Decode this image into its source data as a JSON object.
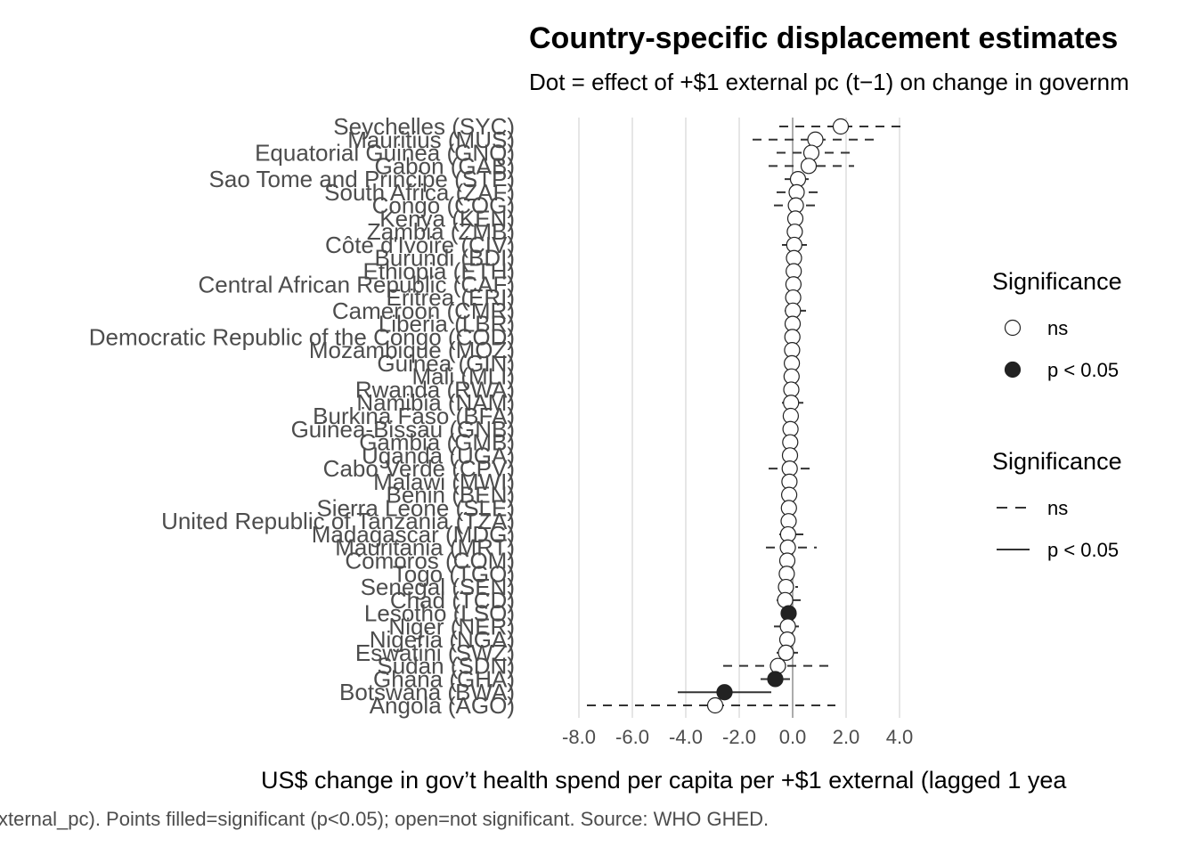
{
  "chart_data": {
    "type": "forest",
    "title": "Country-specific displacement estimates",
    "subtitle": "Dot = effect of +$1 external pc (t−1) on change in governm",
    "xlabel": "US$ change in gov’t health spend per capita per +$1 external (lagged 1 yea",
    "caption": "xternal_pc). Points filled=significant (p<0.05); open=not significant. Source: WHO GHED.",
    "xlim": [
      -8.0,
      4.0
    ],
    "x_ticks": [
      "-8.0",
      "-6.0",
      "-4.0",
      "-2.0",
      "0.0",
      "2.0",
      "4.0"
    ],
    "x_tick_values": [
      -8,
      -6,
      -4,
      -2,
      0,
      2,
      4
    ],
    "reference_line": 0,
    "countries": [
      {
        "label": "Seychelles (SYC)",
        "estimate": 1.8,
        "low": -0.5,
        "high": 4.1,
        "sig": false
      },
      {
        "label": "Mauritius (MUS)",
        "estimate": 0.85,
        "low": -1.5,
        "high": 3.2,
        "sig": false
      },
      {
        "label": "Equatorial Guinea (GNQ)",
        "estimate": 0.7,
        "low": -0.6,
        "high": 2.3,
        "sig": false
      },
      {
        "label": "Gabon (GAB)",
        "estimate": 0.6,
        "low": -0.9,
        "high": 2.3,
        "sig": false
      },
      {
        "label": "Sao Tome and Principe (STP)",
        "estimate": 0.2,
        "low": -0.3,
        "high": 0.6,
        "sig": false
      },
      {
        "label": "South Africa (ZAF)",
        "estimate": 0.15,
        "low": -0.6,
        "high": 1.0,
        "sig": false
      },
      {
        "label": "Congo (COG)",
        "estimate": 0.12,
        "low": -0.7,
        "high": 1.0,
        "sig": false
      },
      {
        "label": "Kenya (KEN)",
        "estimate": 0.1,
        "low": -0.2,
        "high": 0.4,
        "sig": false
      },
      {
        "label": "Zambia (ZMB)",
        "estimate": 0.08,
        "low": -0.2,
        "high": 0.4,
        "sig": false
      },
      {
        "label": "Côte d'Ivoire (CIV)",
        "estimate": 0.06,
        "low": -0.4,
        "high": 0.6,
        "sig": false
      },
      {
        "label": "Burundi (BDI)",
        "estimate": 0.05,
        "low": -0.2,
        "high": 0.3,
        "sig": false
      },
      {
        "label": "Ethiopia (ETH)",
        "estimate": 0.04,
        "low": -0.2,
        "high": 0.3,
        "sig": false
      },
      {
        "label": "Central African Republic (CAF)",
        "estimate": 0.03,
        "low": -0.2,
        "high": 0.3,
        "sig": false
      },
      {
        "label": "Eritrea (ERI)",
        "estimate": 0.02,
        "low": -0.2,
        "high": 0.3,
        "sig": false
      },
      {
        "label": "Cameroon (CMR)",
        "estimate": 0.01,
        "low": -0.3,
        "high": 0.5,
        "sig": false
      },
      {
        "label": "Liberia (LBR)",
        "estimate": 0.0,
        "low": -0.2,
        "high": 0.2,
        "sig": false
      },
      {
        "label": "Democratic Republic of the Congo (COD)",
        "estimate": -0.01,
        "low": -0.2,
        "high": 0.2,
        "sig": false
      },
      {
        "label": "Mozambique (MOZ)",
        "estimate": -0.02,
        "low": -0.2,
        "high": 0.2,
        "sig": false
      },
      {
        "label": "Guinea (GIN)",
        "estimate": -0.03,
        "low": -0.2,
        "high": 0.2,
        "sig": false
      },
      {
        "label": "Mali (MLI)",
        "estimate": -0.04,
        "low": -0.2,
        "high": 0.2,
        "sig": false
      },
      {
        "label": "Rwanda (RWA)",
        "estimate": -0.05,
        "low": -0.2,
        "high": 0.2,
        "sig": false
      },
      {
        "label": "Namibia (NAM)",
        "estimate": -0.06,
        "low": -0.4,
        "high": 0.4,
        "sig": false
      },
      {
        "label": "Burkina Faso (BFA)",
        "estimate": -0.07,
        "low": -0.2,
        "high": 0.2,
        "sig": false
      },
      {
        "label": "Guinea-Bissau (GNB)",
        "estimate": -0.08,
        "low": -0.2,
        "high": 0.2,
        "sig": false
      },
      {
        "label": "Gambia (GMB)",
        "estimate": -0.09,
        "low": -0.2,
        "high": 0.2,
        "sig": false
      },
      {
        "label": "Uganda (UGA)",
        "estimate": -0.1,
        "low": -0.2,
        "high": 0.2,
        "sig": false
      },
      {
        "label": "Cabo Verde (CPV)",
        "estimate": -0.11,
        "low": -0.9,
        "high": 0.9,
        "sig": false
      },
      {
        "label": "Malawi (MWI)",
        "estimate": -0.12,
        "low": -0.3,
        "high": 0.2,
        "sig": false
      },
      {
        "label": "Benin (BEN)",
        "estimate": -0.13,
        "low": -0.3,
        "high": 0.2,
        "sig": false
      },
      {
        "label": "Sierra Leone (SLE)",
        "estimate": -0.14,
        "low": -0.3,
        "high": 0.2,
        "sig": false
      },
      {
        "label": "United Republic of Tanzania (TZA)",
        "estimate": -0.15,
        "low": -0.3,
        "high": 0.2,
        "sig": false
      },
      {
        "label": "Madagascar (MDG)",
        "estimate": -0.17,
        "low": -0.5,
        "high": 0.4,
        "sig": false
      },
      {
        "label": "Mauritania (MRT)",
        "estimate": -0.18,
        "low": -1.0,
        "high": 0.9,
        "sig": false
      },
      {
        "label": "Comoros (COM)",
        "estimate": -0.2,
        "low": -0.4,
        "high": 0.2,
        "sig": false
      },
      {
        "label": "Togo (TGO)",
        "estimate": -0.22,
        "low": -0.4,
        "high": 0.2,
        "sig": false
      },
      {
        "label": "Senegal (SEN)",
        "estimate": -0.25,
        "low": -0.5,
        "high": 0.2,
        "sig": false
      },
      {
        "label": "Chad (TCD)",
        "estimate": -0.28,
        "low": -0.6,
        "high": 0.3,
        "sig": false
      },
      {
        "label": "Lesotho (LSO)",
        "estimate": -0.15,
        "low": -0.3,
        "high": -0.02,
        "sig": true
      },
      {
        "label": "Niger (NER)",
        "estimate": -0.18,
        "low": -0.7,
        "high": 0.4,
        "sig": false
      },
      {
        "label": "Nigeria (NGA)",
        "estimate": -0.2,
        "low": -0.5,
        "high": 0.1,
        "sig": false
      },
      {
        "label": "Eswatini (SWZ)",
        "estimate": -0.25,
        "low": -0.6,
        "high": 0.2,
        "sig": false
      },
      {
        "label": "Sudan (SDN)",
        "estimate": -0.55,
        "low": -2.6,
        "high": 1.6,
        "sig": false
      },
      {
        "label": "Ghana (GHA)",
        "estimate": -0.65,
        "low": -1.2,
        "high": -0.1,
        "sig": true
      },
      {
        "label": "Botswana (BWA)",
        "estimate": -2.55,
        "low": -4.3,
        "high": -0.8,
        "sig": true
      },
      {
        "label": "Angola (AGO)",
        "estimate": -2.9,
        "low": -7.7,
        "high": 1.6,
        "sig": false
      }
    ],
    "legends": [
      {
        "title": "Significance",
        "kind": "point",
        "entries": [
          {
            "label": "ns",
            "fill": "#ffffff"
          },
          {
            "label": "p < 0.05",
            "fill": "#222222"
          }
        ]
      },
      {
        "title": "Significance",
        "kind": "line",
        "entries": [
          {
            "label": "ns",
            "dash": true
          },
          {
            "label": "p < 0.05",
            "dash": false
          }
        ]
      }
    ],
    "legend_position": "right",
    "grid": {
      "vertical_major": true,
      "horizontal": false
    },
    "colors": {
      "sig_fill": "#222222",
      "ns_fill": "#ffffff",
      "line": "#333333",
      "grid": "#e6e6e6",
      "ref_line": "#999999"
    }
  }
}
